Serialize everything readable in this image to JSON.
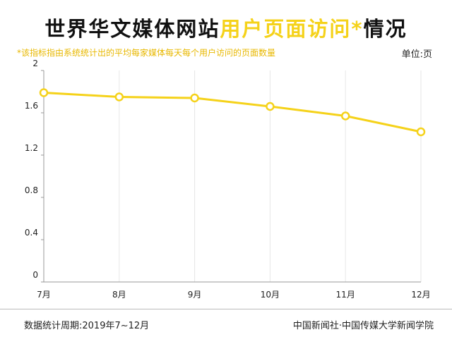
{
  "header": {
    "title_part1": "世界华文媒体网站",
    "title_part2": "用户页面访问*",
    "title_part3": "情况",
    "note": "*该指标指由系统统计出的平均每家媒体每天每个用户访问的页面数量",
    "unit": "单位:页"
  },
  "footer": {
    "period": "数据统计周期:2019年7~12月",
    "source": "中国新闻社·中国传媒大学新闻学院"
  },
  "colors": {
    "accent": "#f5d21a",
    "note": "#e8b800",
    "axis": "#999999",
    "grid": "#e6e6e6"
  },
  "chart_data": {
    "type": "line",
    "categories": [
      "7月",
      "8月",
      "9月",
      "10月",
      "11月",
      "12月"
    ],
    "series": [
      {
        "values": [
          1.79,
          1.75,
          1.74,
          1.66,
          1.57,
          1.42
        ]
      }
    ],
    "yticks": [
      "0",
      "0.4",
      "0.8",
      "1.2",
      "1.6",
      "2"
    ],
    "ylim": [
      0,
      2
    ],
    "grid": "vertical",
    "xlabel": "",
    "ylabel": ""
  }
}
